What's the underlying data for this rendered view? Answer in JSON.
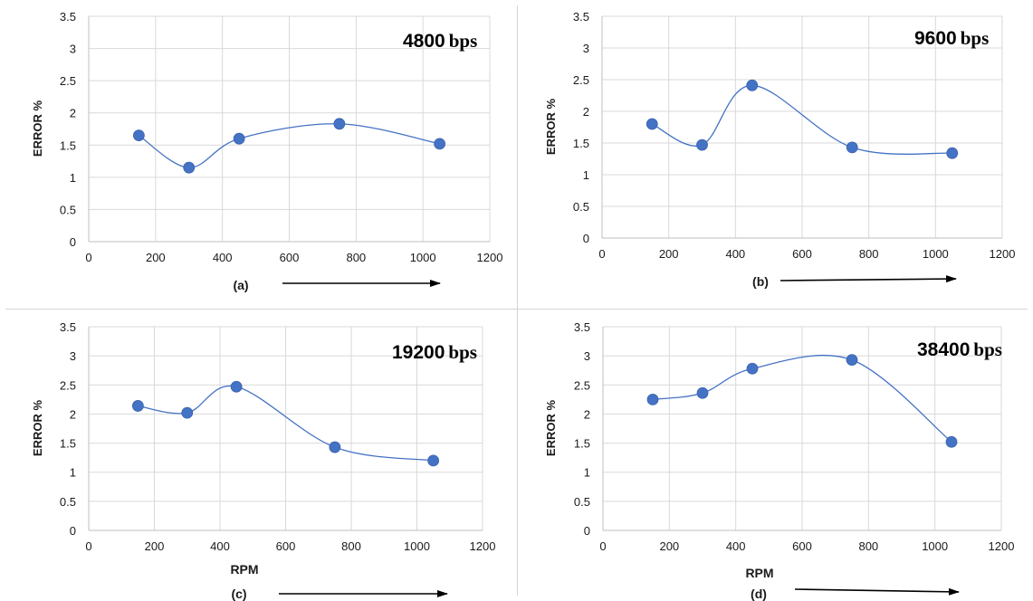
{
  "chart_data": [
    {
      "type": "line",
      "panel": "(a)",
      "rate_value": "4800",
      "rate_unit": "bps",
      "xlabel": "",
      "ylabel": "ERROR %",
      "xlim": [
        0,
        1200
      ],
      "ylim": [
        0,
        3.5
      ],
      "xticks": [
        0,
        200,
        400,
        600,
        800,
        1000,
        1200
      ],
      "yticks": [
        0,
        0.5,
        1,
        1.5,
        2,
        2.5,
        3,
        3.5
      ],
      "grid": true,
      "smooth": true,
      "series": [
        {
          "x": [
            150,
            300,
            450,
            750,
            1050
          ],
          "y": [
            1.65,
            1.15,
            1.6,
            1.83,
            1.52
          ]
        }
      ]
    },
    {
      "type": "line",
      "panel": "(b)",
      "rate_value": "9600",
      "rate_unit": "bps",
      "xlabel": "",
      "ylabel": "ERROR %",
      "xlim": [
        0,
        1200
      ],
      "ylim": [
        0,
        3.5
      ],
      "xticks": [
        0,
        200,
        400,
        600,
        800,
        1000,
        1200
      ],
      "yticks": [
        0,
        0.5,
        1,
        1.5,
        2,
        2.5,
        3,
        3.5
      ],
      "grid": true,
      "smooth": true,
      "series": [
        {
          "x": [
            150,
            300,
            450,
            750,
            1050
          ],
          "y": [
            1.8,
            1.47,
            2.41,
            1.43,
            1.34
          ]
        }
      ]
    },
    {
      "type": "line",
      "panel": "(c)",
      "rate_value": "19200",
      "rate_unit": "bps",
      "xlabel": "RPM",
      "ylabel": "ERROR %",
      "xlim": [
        0,
        1200
      ],
      "ylim": [
        0,
        3.5
      ],
      "xticks": [
        0,
        200,
        400,
        600,
        800,
        1000,
        1200
      ],
      "yticks": [
        0,
        0.5,
        1,
        1.5,
        2,
        2.5,
        3,
        3.5
      ],
      "grid": true,
      "smooth": true,
      "series": [
        {
          "x": [
            150,
            300,
            450,
            750,
            1050
          ],
          "y": [
            2.14,
            2.02,
            2.47,
            1.43,
            1.2
          ]
        }
      ]
    },
    {
      "type": "line",
      "panel": "(d)",
      "rate_value": "38400",
      "rate_unit": "bps",
      "xlabel": "RPM",
      "ylabel": "ERROR %",
      "xlim": [
        0,
        1200
      ],
      "ylim": [
        0,
        3.5
      ],
      "xticks": [
        0,
        200,
        400,
        600,
        800,
        1000,
        1200
      ],
      "yticks": [
        0,
        0.5,
        1,
        1.5,
        2,
        2.5,
        3,
        3.5
      ],
      "grid": true,
      "smooth": true,
      "series": [
        {
          "x": [
            150,
            300,
            450,
            750,
            1050
          ],
          "y": [
            2.25,
            2.36,
            2.78,
            2.93,
            1.52
          ]
        }
      ]
    }
  ],
  "colors": {
    "series_line": "#4472c4",
    "series_marker": "#4472c4",
    "grid": "#d9d9d9",
    "axis": "#bfbfbf",
    "arrow": "#000000"
  }
}
